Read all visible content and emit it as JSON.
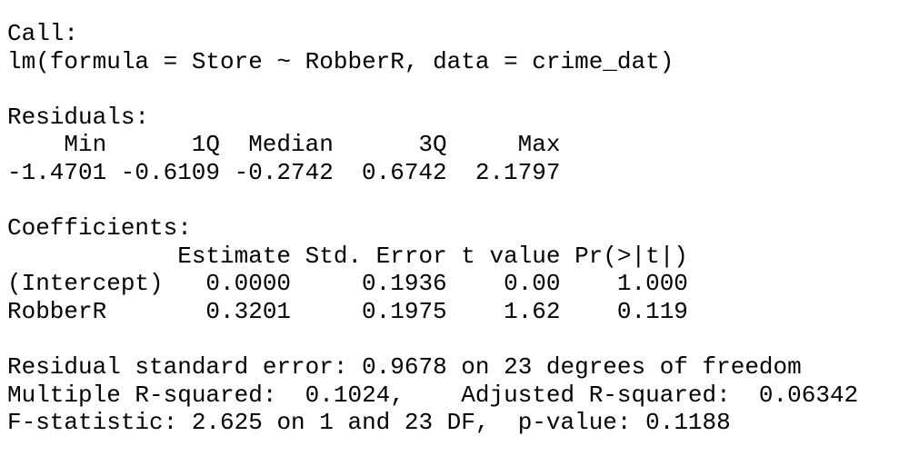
{
  "call": {
    "label": "Call:",
    "formula": "lm(formula = Store ~ RobberR, data = crime_dat)"
  },
  "residuals": {
    "label": "Residuals:",
    "headers": [
      "Min",
      "1Q",
      "Median",
      "3Q",
      "Max"
    ],
    "values": [
      "-1.4701",
      "-0.6109",
      "-0.2742",
      "0.6742",
      "2.1797"
    ]
  },
  "coefficients": {
    "label": "Coefficients:",
    "headers": [
      "Estimate",
      "Std. Error",
      "t value",
      "Pr(>|t|)"
    ],
    "rows": [
      [
        "(Intercept)",
        "0.0000",
        "0.1936",
        "0.00",
        "1.000"
      ],
      [
        "RobberR",
        "0.3201",
        "0.1975",
        "1.62",
        "0.119"
      ]
    ]
  },
  "summary": [
    "Residual standard error: 0.9678 on 23 degrees of freedom",
    "Multiple R-squared:  0.1024,    Adjusted R-squared:  0.06342",
    "F-statistic: 2.625 on 1 and 23 DF,  p-value: 0.1188"
  ]
}
